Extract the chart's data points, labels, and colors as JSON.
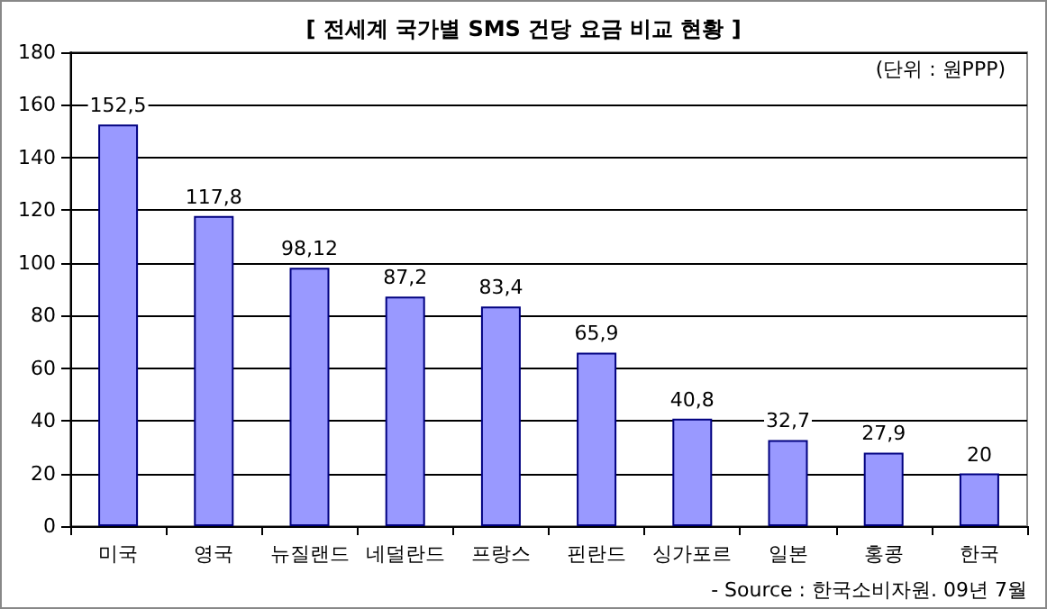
{
  "chart_data": {
    "type": "bar",
    "title": "[ 전세계 국가별 SMS 건당 요금 비교 현황 ]",
    "categories": [
      "미국",
      "영국",
      "뉴질랜드",
      "네덜란드",
      "프랑스",
      "핀란드",
      "싱가포르",
      "일본",
      "홍콩",
      "한국"
    ],
    "values": [
      152.5,
      117.8,
      98.12,
      87.2,
      83.4,
      65.9,
      40.8,
      32.7,
      27.9,
      20
    ],
    "value_labels": [
      "152,5",
      "117,8",
      "98,12",
      "87,2",
      "83,4",
      "65,9",
      "40,8",
      "32,7",
      "27,9",
      "20"
    ],
    "color": "#9999ff",
    "ylim": [
      0,
      180
    ],
    "yticks": [
      0,
      20,
      40,
      60,
      80,
      100,
      120,
      140,
      160,
      180
    ],
    "grid": "y",
    "annotations": [
      "(단위 : 원PPP)",
      "- Source : 한국소비자원. 09년 7월"
    ]
  }
}
